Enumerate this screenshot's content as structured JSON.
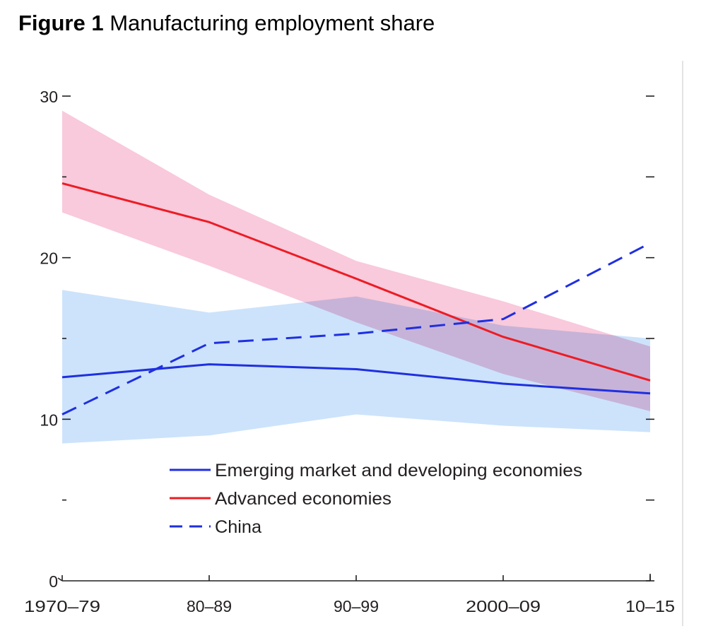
{
  "figure": {
    "number": "Figure 1",
    "title": "Manufacturing employment share"
  },
  "chart_data": {
    "type": "line",
    "title": "Manufacturing employment share",
    "xlabel": "",
    "ylabel": "",
    "categories": [
      "1970–79",
      "80–89",
      "90–99",
      "2000–09",
      "10–15"
    ],
    "ylim": [
      0,
      30
    ],
    "yticks": [
      0,
      10,
      20,
      30
    ],
    "yticks_minor": [
      5,
      15,
      25
    ],
    "grid": false,
    "legend_position": "bottom-center",
    "series": [
      {
        "name": "Emerging market and developing economies",
        "values": [
          12.6,
          13.4,
          13.1,
          12.2,
          11.6
        ],
        "color": "#1f2fe0",
        "style": "solid",
        "band_lower": [
          8.5,
          9.0,
          10.3,
          9.6,
          9.2
        ],
        "band_upper": [
          18.0,
          16.6,
          17.6,
          15.8,
          15.0
        ],
        "band_color": "#cce3fb"
      },
      {
        "name": "Advanced economies",
        "values": [
          24.6,
          22.2,
          18.7,
          15.1,
          12.4
        ],
        "color": "#ed1c24",
        "style": "solid",
        "band_lower": [
          22.8,
          19.5,
          16.0,
          12.8,
          10.5
        ],
        "band_upper": [
          29.1,
          23.9,
          19.8,
          17.3,
          14.5
        ],
        "band_color": "#f9c9dc"
      },
      {
        "name": "China",
        "values": [
          10.3,
          14.7,
          15.3,
          16.2,
          20.9
        ],
        "color": "#1f2fe0",
        "style": "dashed"
      }
    ]
  }
}
